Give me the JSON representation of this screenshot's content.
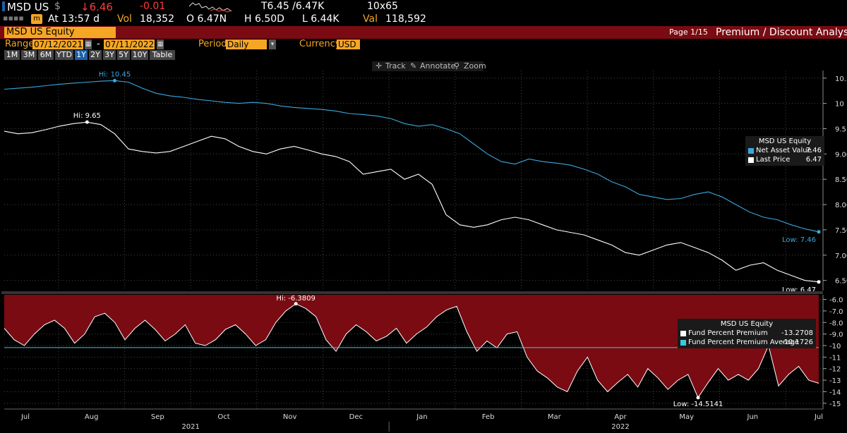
{
  "quote": {
    "ticker": "MSD US",
    "currency_symbol": "$",
    "last": "↓6.46",
    "change": "-0.01",
    "bid_ask": "T6.45 /6.47K",
    "size": "10x65",
    "at_time": "At 13:57 d",
    "vol_label": "Vol",
    "vol": "18,352",
    "open": "O 6.47N",
    "high": "H 6.50D",
    "low": "L 6.44K",
    "val_label": "Val",
    "val": "118,592"
  },
  "header": {
    "security": "MSD US Equity",
    "page": "Page 1/15",
    "function_title": "Premium / Discount Analysis"
  },
  "params": {
    "range_label": "Range",
    "start_date": "07/12/2021",
    "dash": "-",
    "end_date": "07/11/2022",
    "period_label": "Period",
    "period_value": "Daily",
    "currency_label": "Currency",
    "currency_value": "USD"
  },
  "range_buttons": [
    "1M",
    "3M",
    "6M",
    "YTD",
    "1Y",
    "2Y",
    "3Y",
    "5Y",
    "10Y",
    "Table"
  ],
  "active_range": "1Y",
  "tools": {
    "track": "Track",
    "annotate": "Annotate",
    "zoom": "Zoom"
  },
  "colors": {
    "nav_line": "#3aa8e0",
    "price_line": "#ffffff",
    "premium_fill": "#7a0b12",
    "avg_line": "#3ec8d8",
    "header_bg": "#7a0b12",
    "amber": "#f5a623"
  },
  "chart_data": [
    {
      "type": "line",
      "legend_title": "MSD US Equity",
      "series": [
        {
          "name": "Net Asset Value",
          "last_value": "7.46",
          "values": [
            10.28,
            10.3,
            10.32,
            10.35,
            10.38,
            10.4,
            10.42,
            10.44,
            10.45,
            10.42,
            10.3,
            10.2,
            10.15,
            10.12,
            10.08,
            10.05,
            10.02,
            10.0,
            10.02,
            10.0,
            9.95,
            9.92,
            9.9,
            9.88,
            9.85,
            9.8,
            9.78,
            9.75,
            9.7,
            9.6,
            9.55,
            9.58,
            9.5,
            9.4,
            9.2,
            9.0,
            8.85,
            8.8,
            8.9,
            8.85,
            8.82,
            8.78,
            8.7,
            8.6,
            8.45,
            8.35,
            8.2,
            8.15,
            8.1,
            8.12,
            8.2,
            8.25,
            8.15,
            8.0,
            7.85,
            7.75,
            7.7,
            7.6,
            7.52,
            7.46
          ]
        },
        {
          "name": "Last Price",
          "last_value": "6.47",
          "values": [
            9.45,
            9.4,
            9.42,
            9.48,
            9.55,
            9.6,
            9.63,
            9.58,
            9.4,
            9.1,
            9.05,
            9.02,
            9.05,
            9.15,
            9.25,
            9.35,
            9.3,
            9.15,
            9.05,
            9.0,
            9.1,
            9.15,
            9.08,
            9.0,
            8.95,
            8.85,
            8.6,
            8.65,
            8.7,
            8.5,
            8.6,
            8.4,
            7.8,
            7.6,
            7.55,
            7.6,
            7.7,
            7.75,
            7.7,
            7.6,
            7.5,
            7.45,
            7.4,
            7.3,
            7.2,
            7.05,
            7.0,
            7.1,
            7.2,
            7.25,
            7.15,
            7.05,
            6.9,
            6.7,
            6.8,
            6.85,
            6.7,
            6.6,
            6.5,
            6.47
          ]
        }
      ],
      "annotations": [
        {
          "label": "Hi: 10.45",
          "series": "Net Asset Value",
          "index": 8
        },
        {
          "label": "Hi: 9.65",
          "series": "Last Price",
          "index": 6
        },
        {
          "label": "Low: 7.46",
          "series": "Net Asset Value",
          "index": 59
        },
        {
          "label": "Low: 6.47",
          "series": "Last Price",
          "index": 59
        }
      ],
      "y_ticks": [
        "10.5",
        "10",
        "9.5",
        "9.00",
        "8.50",
        "8.00",
        "7.50",
        "7.00",
        "6.50"
      ],
      "ylim": [
        6.3,
        10.65
      ],
      "grid": true,
      "legend_position": "top-right"
    },
    {
      "type": "area",
      "legend_title": "MSD US Equity",
      "series": [
        {
          "name": "Fund Percent Premium",
          "last_value": "-13.2708",
          "values": [
            -8.5,
            -9.5,
            -10.0,
            -9.0,
            -8.2,
            -7.8,
            -8.5,
            -9.8,
            -9.0,
            -7.5,
            -7.2,
            -8.0,
            -9.5,
            -8.5,
            -7.8,
            -8.6,
            -9.6,
            -9.0,
            -8.2,
            -9.8,
            -10.0,
            -9.5,
            -8.6,
            -8.2,
            -9.0,
            -10.0,
            -9.5,
            -8.0,
            -7.0,
            -6.38,
            -6.8,
            -7.5,
            -9.5,
            -10.5,
            -9.0,
            -8.2,
            -8.8,
            -9.6,
            -9.2,
            -8.5,
            -9.8,
            -9.0,
            -8.4,
            -7.5,
            -6.9,
            -6.6,
            -8.8,
            -10.5,
            -9.6,
            -10.2,
            -9.0,
            -8.8,
            -11.0,
            -12.2,
            -12.8,
            -13.6,
            -14.0,
            -12.2,
            -11.0,
            -13.0,
            -14.0,
            -13.2,
            -12.5,
            -13.6,
            -12.0,
            -12.8,
            -13.8,
            -13.0,
            -12.5,
            -14.51,
            -13.2,
            -12.0,
            -13.0,
            -12.5,
            -13.0,
            -12.0,
            -10.0,
            -13.5,
            -12.5,
            -11.8,
            -13.0,
            -13.27
          ]
        },
        {
          "name": "Fund Percent Premium Average",
          "last_value": "-10.1726",
          "values": [
            -10.1726
          ]
        }
      ],
      "annotations": [
        {
          "label": "Hi: -6.3809",
          "series": "Fund Percent Premium",
          "value": -6.3809
        },
        {
          "label": "Low: -14.5141",
          "series": "Fund Percent Premium",
          "value": -14.5141
        }
      ],
      "y_ticks": [
        "-6.0",
        "-7.0",
        "-8.0",
        "-9.0",
        "-10",
        "-11",
        "-12",
        "-13",
        "-14",
        "-15"
      ],
      "ylim": [
        -15.5,
        -5.6
      ],
      "grid": true,
      "legend_position": "top-right"
    }
  ],
  "x_axis": {
    "months": [
      "Jul",
      "Aug",
      "Sep",
      "Oct",
      "Nov",
      "Dec",
      "Jan",
      "Feb",
      "Mar",
      "Apr",
      "May",
      "Jun",
      "Jul"
    ],
    "years": [
      "2021",
      "2022"
    ]
  }
}
